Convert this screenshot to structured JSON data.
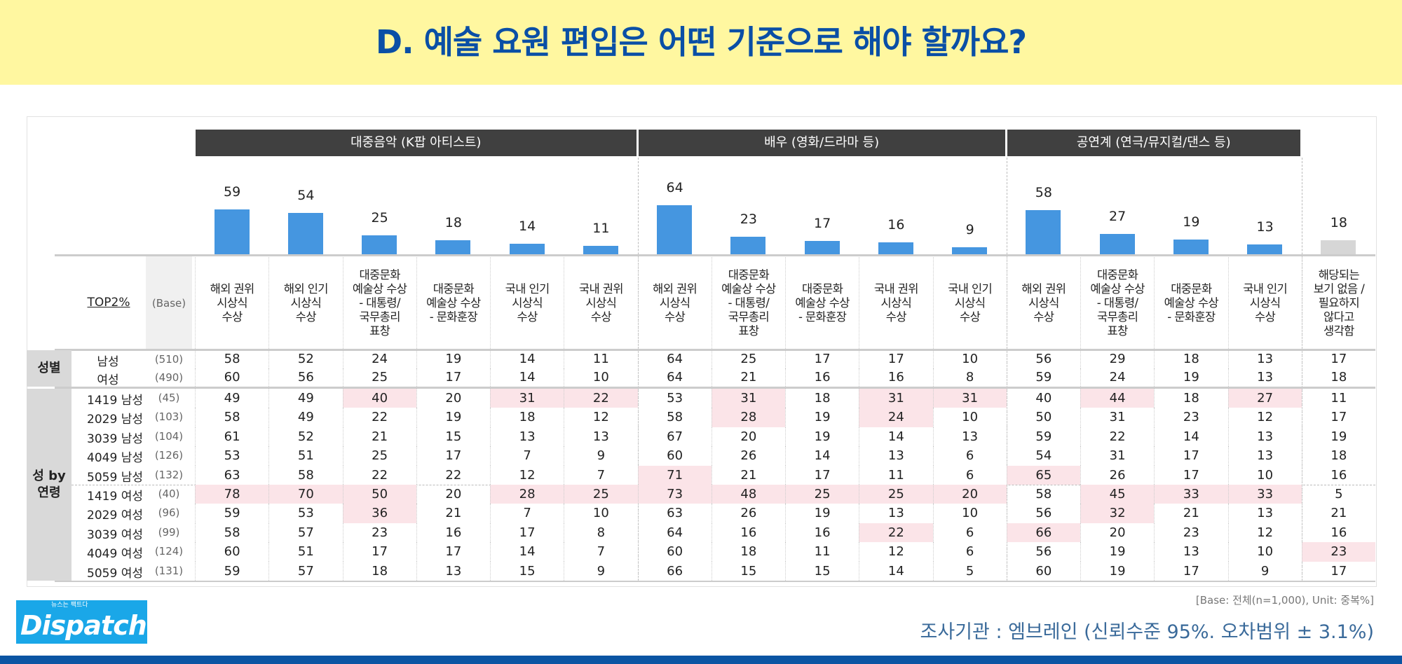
{
  "title": "D. 예술 요원 편입은 어떤 기준으로 해야 할까요?",
  "groups": [
    "대중음악 (K팝 아티스트)",
    "배우 (영화/드라마 등)",
    "공연계 (연극/뮤지컬/댄스 등)"
  ],
  "corner_label": "TOP2%",
  "base_label": "(Base)",
  "columns": [
    "해외 권위\n시상식\n수상",
    "해외 인기\n시상식\n수상",
    "대중문화\n예술상 수상\n- 대통령/\n국무총리\n표창",
    "대중문화\n예술상 수상\n- 문화훈장",
    "국내 인기\n시상식\n수상",
    "국내 권위\n시상식\n수상",
    "해외 권위\n시상식\n수상",
    "대중문화\n예술상 수상\n- 대통령/\n국무총리\n표창",
    "대중문화\n예술상 수상\n- 문화훈장",
    "국내 권위\n시상식\n수상",
    "국내 인기\n시상식\n수상",
    "해외 권위\n시상식\n수상",
    "대중문화\n예술상 수상\n- 대통령/\n국무총리\n표창",
    "대중문화\n예술상 수상\n- 문화훈장",
    "국내 인기\n시상식\n수상",
    "해당되는\n보기 없음 /\n필요하지\n않다고\n생각함"
  ],
  "section_labels": [
    "성별",
    "성 by\n연령"
  ],
  "chart_data": {
    "type": "bar",
    "title": "D. 예술 요원 편입은 어떤 기준으로 해야 할까요?",
    "unit": "%",
    "categories_group": [
      0,
      0,
      0,
      0,
      0,
      0,
      1,
      1,
      1,
      1,
      1,
      2,
      2,
      2,
      2,
      3
    ],
    "values": [
      59,
      54,
      25,
      18,
      14,
      11,
      64,
      23,
      17,
      16,
      9,
      58,
      27,
      19,
      13,
      18
    ],
    "colors": {
      "bar": "#4596e0",
      "none_bar": "#d6d6d6",
      "highlight": "#fbe4e8"
    }
  },
  "rows": [
    {
      "label": "남성",
      "base": "(510)",
      "values": [
        58,
        52,
        24,
        19,
        14,
        11,
        64,
        25,
        17,
        17,
        10,
        56,
        29,
        18,
        13,
        17
      ],
      "hl": []
    },
    {
      "label": "여성",
      "base": "(490)",
      "values": [
        60,
        56,
        25,
        17,
        14,
        10,
        64,
        21,
        16,
        16,
        8,
        59,
        24,
        19,
        13,
        18
      ],
      "hl": []
    },
    {
      "label": "1419 남성",
      "base": "(45)",
      "values": [
        49,
        49,
        40,
        20,
        31,
        22,
        53,
        31,
        18,
        31,
        31,
        40,
        44,
        18,
        27,
        11
      ],
      "hl": [
        2,
        4,
        5,
        7,
        9,
        10,
        12,
        14
      ]
    },
    {
      "label": "2029 남성",
      "base": "(103)",
      "values": [
        58,
        49,
        22,
        19,
        18,
        12,
        58,
        28,
        19,
        24,
        10,
        50,
        31,
        23,
        12,
        17
      ],
      "hl": [
        7,
        9
      ]
    },
    {
      "label": "3039 남성",
      "base": "(104)",
      "values": [
        61,
        52,
        21,
        15,
        13,
        13,
        67,
        20,
        19,
        14,
        13,
        59,
        22,
        14,
        13,
        19
      ],
      "hl": []
    },
    {
      "label": "4049 남성",
      "base": "(126)",
      "values": [
        53,
        51,
        25,
        17,
        7,
        9,
        60,
        26,
        14,
        13,
        6,
        54,
        31,
        17,
        13,
        18
      ],
      "hl": []
    },
    {
      "label": "5059 남성",
      "base": "(132)",
      "values": [
        63,
        58,
        22,
        22,
        12,
        7,
        71,
        21,
        17,
        11,
        6,
        65,
        26,
        17,
        10,
        16
      ],
      "hl": [
        6,
        11
      ]
    },
    {
      "label": "1419 여성",
      "base": "(40)",
      "values": [
        78,
        70,
        50,
        20,
        28,
        25,
        73,
        48,
        25,
        25,
        20,
        58,
        45,
        33,
        33,
        5
      ],
      "hl": [
        0,
        1,
        2,
        4,
        5,
        6,
        7,
        8,
        9,
        10,
        12,
        13,
        14
      ]
    },
    {
      "label": "2029 여성",
      "base": "(96)",
      "values": [
        59,
        53,
        36,
        21,
        7,
        10,
        63,
        26,
        19,
        13,
        10,
        56,
        32,
        21,
        13,
        21
      ],
      "hl": [
        2,
        12
      ]
    },
    {
      "label": "3039 여성",
      "base": "(99)",
      "values": [
        58,
        57,
        23,
        16,
        17,
        8,
        64,
        16,
        16,
        22,
        6,
        66,
        20,
        23,
        12,
        16
      ],
      "hl": [
        9,
        11
      ]
    },
    {
      "label": "4049 여성",
      "base": "(124)",
      "values": [
        60,
        51,
        17,
        17,
        14,
        7,
        60,
        18,
        11,
        12,
        6,
        56,
        19,
        13,
        10,
        23
      ],
      "hl": [
        15
      ]
    },
    {
      "label": "5059 여성",
      "base": "(131)",
      "values": [
        59,
        57,
        18,
        13,
        15,
        9,
        66,
        15,
        15,
        14,
        5,
        60,
        19,
        17,
        9,
        17
      ],
      "hl": []
    }
  ],
  "footer": {
    "base_note": "[Base: 전체(n=1,000), Unit: 중복%]",
    "source": "조사기관 : 엠브레인 (신뢰수준 95%. 오차범위 ± 3.1%)",
    "logo": "Dispatch",
    "logo_tagline": "뉴스는 팩트다"
  }
}
